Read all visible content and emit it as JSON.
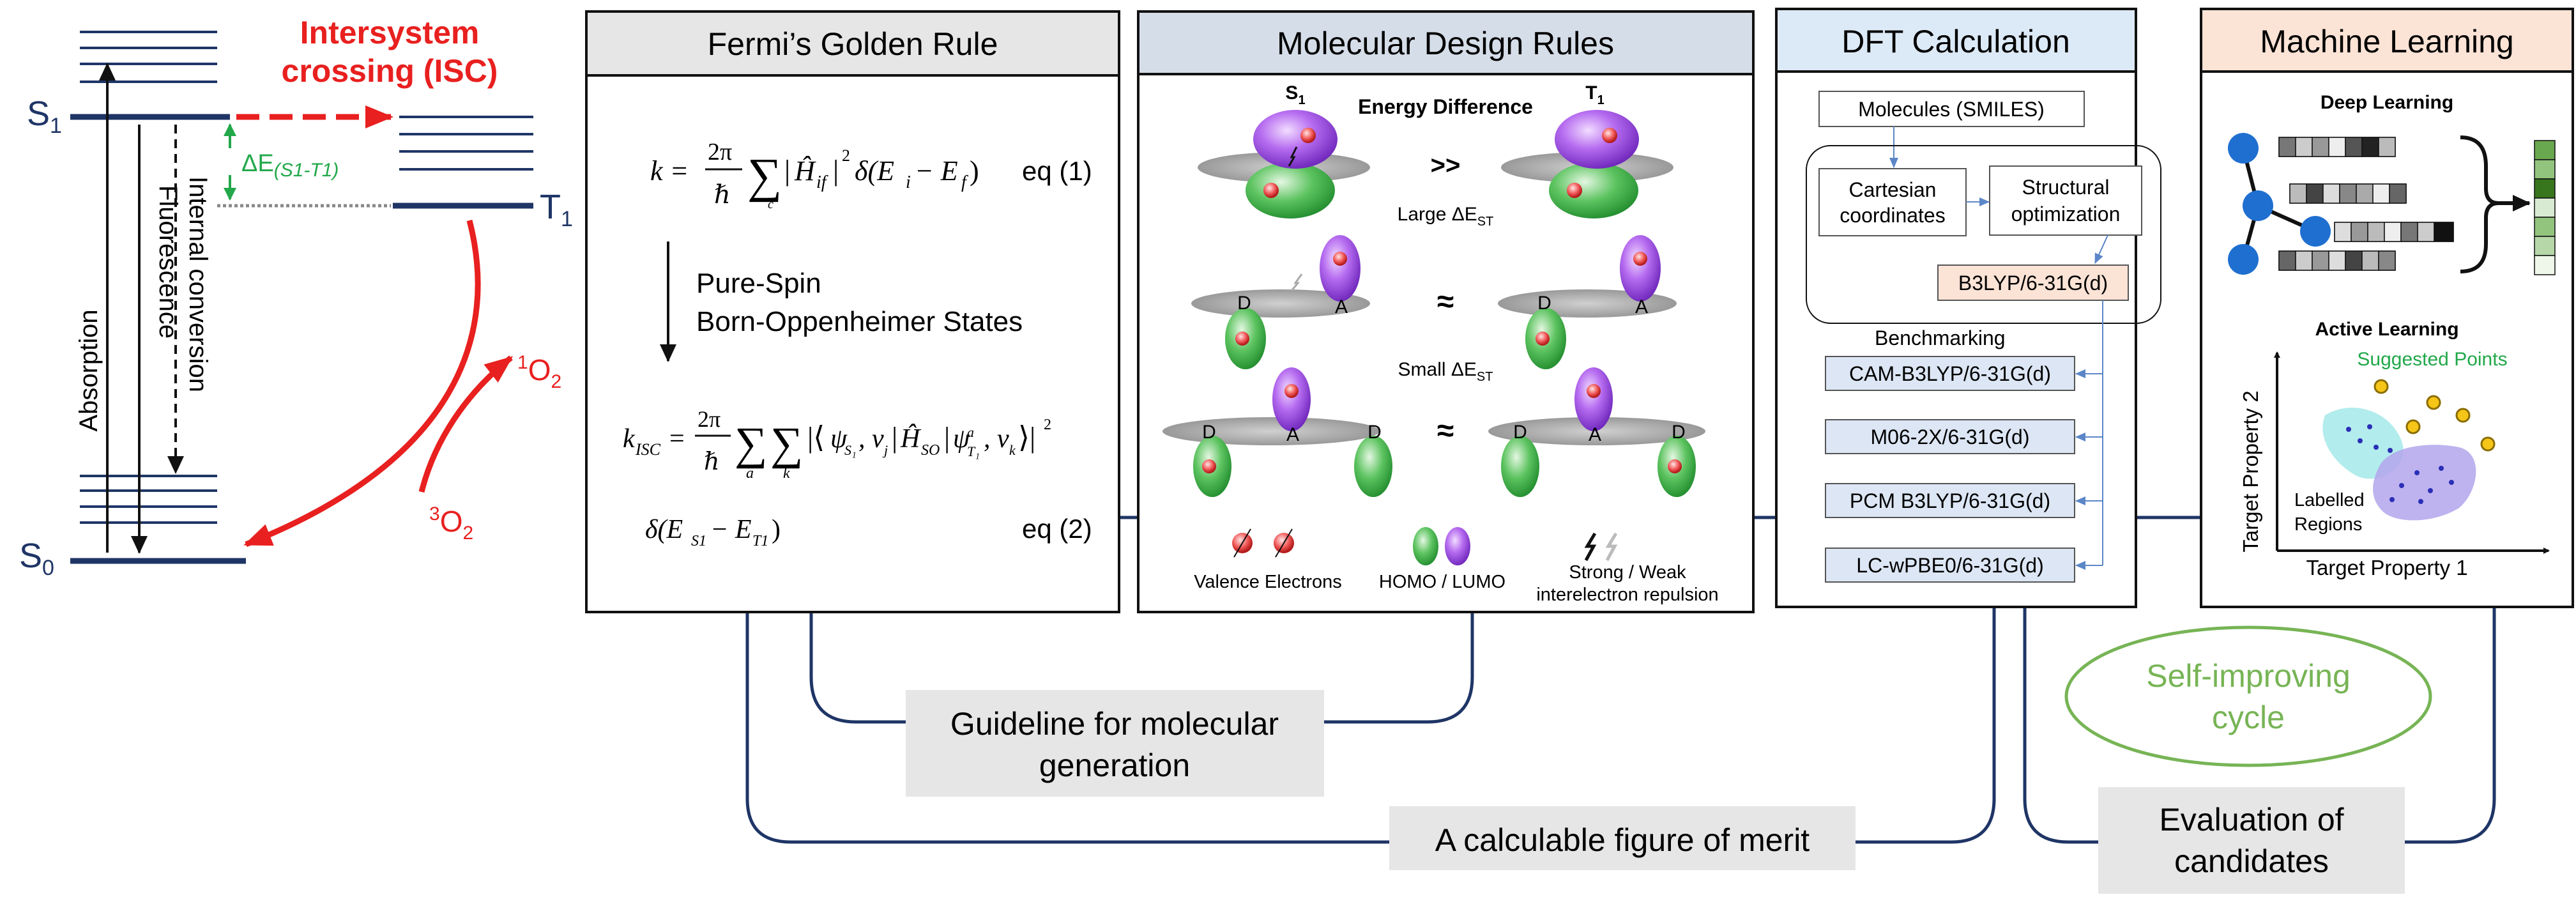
{
  "jablonski": {
    "s1_label": "S",
    "s1_sub": "1",
    "t1_label": "T",
    "t1_sub": "1",
    "s0_label": "S",
    "s0_sub": "0",
    "isc_line1": "Intersystem",
    "isc_line2": "crossing (ISC)",
    "delta_e_prefix": "ΔE",
    "delta_e_sub": "(S1-T1)",
    "absorption": "Absorption",
    "fluorescence": "Fluorescence",
    "internal_conversion": "Internal conversion",
    "singlet_oxygen_sup": "1",
    "singlet_oxygen": "O",
    "singlet_oxygen_sub": "2",
    "triplet_oxygen_sup": "3",
    "triplet_oxygen": "O",
    "triplet_oxygen_sub": "2"
  },
  "fermi": {
    "title": "Fermi’s Golden Rule",
    "eq1_label": "eq (1)",
    "transform_line1": "Pure-Spin",
    "transform_line2": "Born-Oppenheimer States",
    "eq2_label": "eq (2)"
  },
  "design": {
    "title": "Molecular Design Rules",
    "s1": "S",
    "s1_sub": "1",
    "t1": "T",
    "t1_sub": "1",
    "energy_difference": "Energy Difference",
    "much_greater": ">>",
    "large_delta": "Large ΔE",
    "small_delta": "Small ΔE",
    "st_sub": "ST",
    "approx": "≈",
    "donor": "D",
    "acceptor": "A",
    "legend_valence": "Valence Electrons",
    "legend_homo_lumo": "HOMO / LUMO",
    "legend_repulsion_line1": "Strong / Weak",
    "legend_repulsion_line2": "interelectron repulsion"
  },
  "dft": {
    "title": "DFT Calculation",
    "molecules": "Molecules  (SMILES)",
    "cartesian_line1": "Cartesian",
    "cartesian_line2": "coordinates",
    "structural_line1": "Structural",
    "structural_line2": "optimization",
    "b3lyp": "B3LYP/6-31G(d)",
    "benchmarking": "Benchmarking",
    "methods": [
      "CAM-B3LYP/6-31G(d)",
      "M06-2X/6-31G(d)",
      "PCM B3LYP/6-31G(d)",
      "LC-wPBE0/6-31G(d)"
    ]
  },
  "ml": {
    "title": "Machine Learning",
    "deep_learning": "Deep Learning",
    "active_learning": "Active Learning",
    "suggested_points": "Suggested Points",
    "labelled_line1": "Labelled",
    "labelled_line2": "Regions",
    "x_axis": "Target Property 1",
    "y_axis": "Target Property 2"
  },
  "cycle": {
    "guideline_line1": "Guideline for molecular",
    "guideline_line2": "generation",
    "figure_of_merit": "A calculable figure of merit",
    "self_improving_line1": "Self-improving",
    "self_improving_line2": "cycle",
    "evaluation_line1": "Evaluation of",
    "evaluation_line2": "candidates"
  },
  "colors": {
    "navy": "#1f3566",
    "red": "#e8201f",
    "green": "#22a84a",
    "fermi_header": "#e6e6e6",
    "design_header": "#d5dde8",
    "dft_header": "#dce9f6",
    "ml_header": "#fbe3d6",
    "note_bg": "#e6e6e6",
    "cycle_green": "#77b455"
  }
}
